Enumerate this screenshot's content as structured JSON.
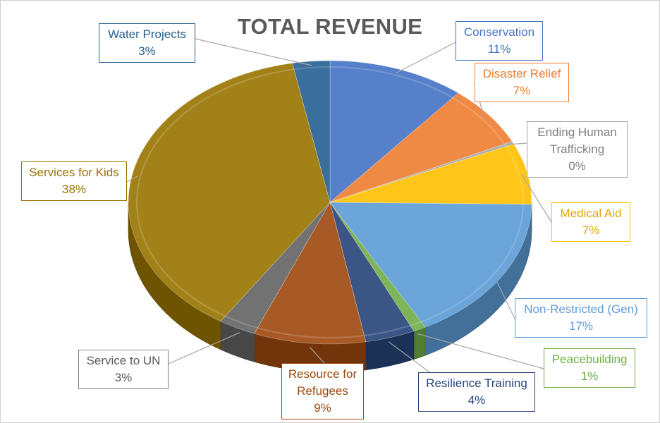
{
  "chart_data": {
    "type": "pie",
    "title": "TOTAL REVENUE",
    "slices": [
      {
        "label": "Conservation",
        "value": 11,
        "value_label": "11%",
        "color": "#4472c4"
      },
      {
        "label": "Disaster Relief",
        "value": 7,
        "value_label": "7%",
        "color": "#ed7d31"
      },
      {
        "label": "Ending Human Trafficking",
        "value": 0.3,
        "value_label": "0%",
        "color": "#a5a5a5"
      },
      {
        "label": "Medical Aid",
        "value": 7,
        "value_label": "7%",
        "color": "#ffc000"
      },
      {
        "label": "Non-Restricted (Gen)",
        "value": 17,
        "value_label": "17%",
        "color": "#5b9bd5"
      },
      {
        "label": "Peacebuilding",
        "value": 1,
        "value_label": "1%",
        "color": "#70ad47"
      },
      {
        "label": "Resilience Training",
        "value": 4,
        "value_label": "4%",
        "color": "#264478"
      },
      {
        "label": "Resource for Refugees",
        "value": 9,
        "value_label": "9%",
        "color": "#9e480e"
      },
      {
        "label": "Service to UN",
        "value": 3,
        "value_label": "3%",
        "color": "#636363"
      },
      {
        "label": "Services for Kids",
        "value": 38,
        "value_label": "38%",
        "color": "#997300"
      },
      {
        "label": "Water Projects",
        "value": 3,
        "value_label": "3%",
        "color": "#255e91"
      }
    ]
  }
}
